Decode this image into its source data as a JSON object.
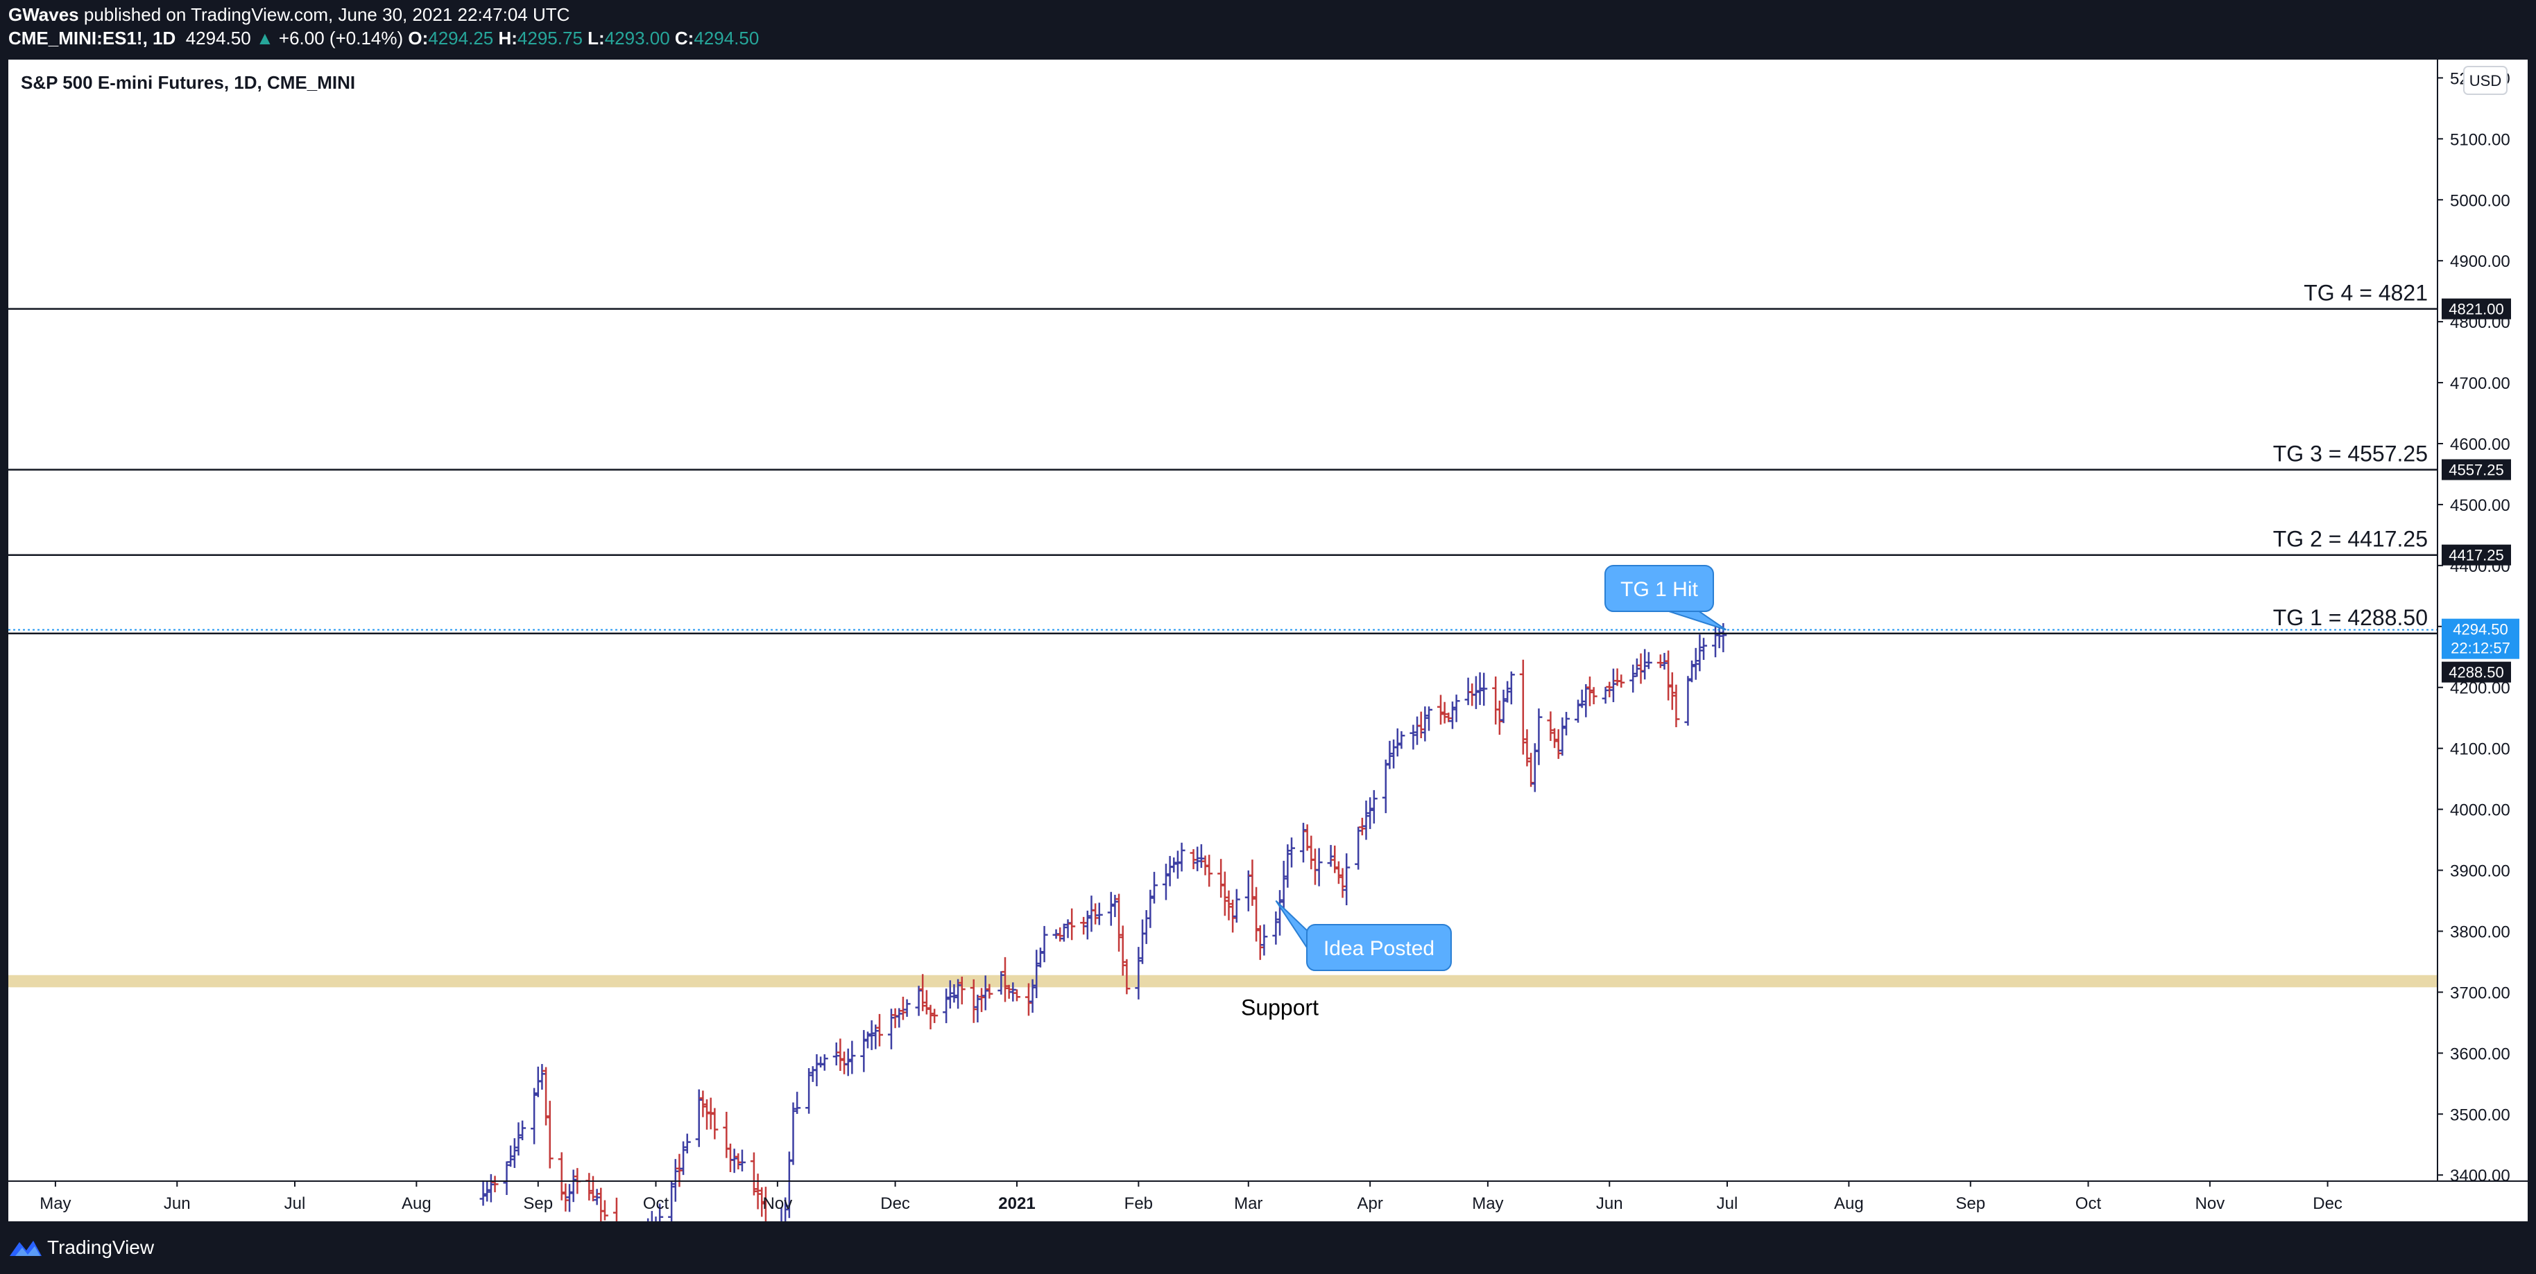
{
  "header": {
    "publisher": "GWaves",
    "published_text": " published on TradingView.com, June 30, 2021 22:47:04 UTC",
    "symbol": "CME_MINI:ES1!, 1D",
    "last": "4294.50",
    "change": "+6.00 (+0.14%)",
    "open_label": "O:",
    "open": "4294.25",
    "high_label": "H:",
    "high": "4295.75",
    "low_label": "L:",
    "low": "4293.00",
    "close_label": "C:",
    "close": "4294.50"
  },
  "chart_title": "S&P 500 E-mini Futures, 1D, CME_MINI",
  "currency": "USD",
  "footer": {
    "brand": "TradingView"
  },
  "colors": {
    "up": "#3d3fa3",
    "down": "#c43a3a",
    "support": "#e9d9a8",
    "callout": "#5aaeff",
    "price_tag": "#2196f3"
  },
  "chart_data": {
    "type": "ohlc",
    "title": "S&P 500 E-mini Futures, 1D, CME_MINI",
    "ylim": [
      3390,
      5230
    ],
    "y_ticks": [
      3400,
      3500,
      3600,
      3700,
      3800,
      3900,
      4000,
      4100,
      4200,
      4300,
      4400,
      4500,
      4600,
      4700,
      4800,
      4900,
      5000,
      5100,
      5200
    ],
    "y_tick_labels": [
      "3400.00",
      "3500.00",
      "3600.00",
      "3700.00",
      "3800.00",
      "3900.00",
      "4000.00",
      "4100.00",
      "4200.00",
      "4300.00",
      "4400.00",
      "4500.00",
      "4600.00",
      "4700.00",
      "4800.00",
      "4900.00",
      "5000.00",
      "5100.00",
      "5200.00"
    ],
    "x_range": [
      "2020-04-19",
      "2021-12-29"
    ],
    "x_ticks": [
      {
        "date": "2020-05-01",
        "label": "May"
      },
      {
        "date": "2020-06-01",
        "label": "Jun"
      },
      {
        "date": "2020-07-01",
        "label": "Jul"
      },
      {
        "date": "2020-08-01",
        "label": "Aug"
      },
      {
        "date": "2020-09-01",
        "label": "Sep"
      },
      {
        "date": "2020-10-01",
        "label": "Oct"
      },
      {
        "date": "2020-11-01",
        "label": "Nov"
      },
      {
        "date": "2020-12-01",
        "label": "Dec"
      },
      {
        "date": "2021-01-01",
        "label": "2021",
        "bold": true
      },
      {
        "date": "2021-02-01",
        "label": "Feb"
      },
      {
        "date": "2021-03-01",
        "label": "Mar"
      },
      {
        "date": "2021-04-01",
        "label": "Apr"
      },
      {
        "date": "2021-05-01",
        "label": "May"
      },
      {
        "date": "2021-06-01",
        "label": "Jun"
      },
      {
        "date": "2021-07-01",
        "label": "Jul"
      },
      {
        "date": "2021-08-01",
        "label": "Aug"
      },
      {
        "date": "2021-09-01",
        "label": "Sep"
      },
      {
        "date": "2021-10-01",
        "label": "Oct"
      },
      {
        "date": "2021-11-01",
        "label": "Nov"
      },
      {
        "date": "2021-12-01",
        "label": "Dec"
      }
    ],
    "anchors": [
      [
        "2020-08-18",
        3375
      ],
      [
        "2020-08-22",
        3385
      ],
      [
        "2020-08-26",
        3440
      ],
      [
        "2020-08-29",
        3500
      ],
      [
        "2020-09-02",
        3570
      ],
      [
        "2020-09-04",
        3430
      ],
      [
        "2020-09-08",
        3360
      ],
      [
        "2020-09-10",
        3390
      ],
      [
        "2020-09-14",
        3375
      ],
      [
        "2020-09-18",
        3340
      ],
      [
        "2020-09-24",
        3240
      ],
      [
        "2020-10-02",
        3330
      ],
      [
        "2020-10-09",
        3450
      ],
      [
        "2020-10-12",
        3525
      ],
      [
        "2020-10-16",
        3480
      ],
      [
        "2020-10-20",
        3430
      ],
      [
        "2020-10-23",
        3420
      ],
      [
        "2020-10-28",
        3350
      ],
      [
        "2020-10-30",
        3270
      ],
      [
        "2020-11-03",
        3350
      ],
      [
        "2020-11-05",
        3500
      ],
      [
        "2020-11-09",
        3560
      ],
      [
        "2020-11-13",
        3600
      ],
      [
        "2020-11-18",
        3580
      ],
      [
        "2020-11-24",
        3620
      ],
      [
        "2020-12-01",
        3660
      ],
      [
        "2020-12-07",
        3695
      ],
      [
        "2020-12-11",
        3660
      ],
      [
        "2020-12-17",
        3710
      ],
      [
        "2020-12-21",
        3680
      ],
      [
        "2020-12-28",
        3720
      ],
      [
        "2021-01-04",
        3680
      ],
      [
        "2021-01-08",
        3790
      ],
      [
        "2021-01-12",
        3800
      ],
      [
        "2021-01-20",
        3830
      ],
      [
        "2021-01-22",
        3820
      ],
      [
        "2021-01-26",
        3840
      ],
      [
        "2021-01-29",
        3700
      ],
      [
        "2021-02-01",
        3760
      ],
      [
        "2021-02-05",
        3880
      ],
      [
        "2021-02-10",
        3910
      ],
      [
        "2021-02-12",
        3930
      ],
      [
        "2021-02-17",
        3920
      ],
      [
        "2021-02-22",
        3870
      ],
      [
        "2021-02-25",
        3830
      ],
      [
        "2021-03-01",
        3890
      ],
      [
        "2021-03-04",
        3770
      ],
      [
        "2021-03-08",
        3820
      ],
      [
        "2021-03-11",
        3930
      ],
      [
        "2021-03-15",
        3960
      ],
      [
        "2021-03-18",
        3900
      ],
      [
        "2021-03-22",
        3920
      ],
      [
        "2021-03-25",
        3880
      ],
      [
        "2021-03-29",
        3960
      ],
      [
        "2021-04-01",
        4010
      ],
      [
        "2021-04-05",
        4070
      ],
      [
        "2021-04-09",
        4120
      ],
      [
        "2021-04-14",
        4140
      ],
      [
        "2021-04-16",
        4170
      ],
      [
        "2021-04-20",
        4150
      ],
      [
        "2021-04-23",
        4175
      ],
      [
        "2021-04-29",
        4200
      ],
      [
        "2021-05-04",
        4150
      ],
      [
        "2021-05-07",
        4220
      ],
      [
        "2021-05-12",
        4040
      ],
      [
        "2021-05-14",
        4160
      ],
      [
        "2021-05-19",
        4100
      ],
      [
        "2021-05-21",
        4150
      ],
      [
        "2021-05-26",
        4190
      ],
      [
        "2021-06-01",
        4200
      ],
      [
        "2021-06-07",
        4220
      ],
      [
        "2021-06-11",
        4240
      ],
      [
        "2021-06-15",
        4240
      ],
      [
        "2021-06-18",
        4150
      ],
      [
        "2021-06-21",
        4220
      ],
      [
        "2021-06-24",
        4260
      ],
      [
        "2021-06-28",
        4285
      ],
      [
        "2021-06-30",
        4294.5
      ]
    ],
    "target_lines": [
      {
        "label": "TG 4 = 4821",
        "value": 4821,
        "tag": "4821.00"
      },
      {
        "label": "TG 3 = 4557.25",
        "value": 4557.25,
        "tag": "4557.25"
      },
      {
        "label": "TG 2 = 4417.25",
        "value": 4417.25,
        "tag": "4417.25"
      },
      {
        "label": "TG 1 = 4288.50",
        "value": 4288.5,
        "tag": "4288.50"
      }
    ],
    "support_zone": {
      "low": 3708,
      "high": 3728,
      "label": "Support"
    },
    "last_price": {
      "value": 4294.5,
      "tag": "4294.50",
      "countdown": "22:12:57"
    },
    "callouts": [
      {
        "text": "TG 1 Hit",
        "date": "2021-06-30",
        "value": 4294.5
      },
      {
        "text": "Idea Posted",
        "date": "2021-03-08",
        "value": 3850
      }
    ]
  }
}
